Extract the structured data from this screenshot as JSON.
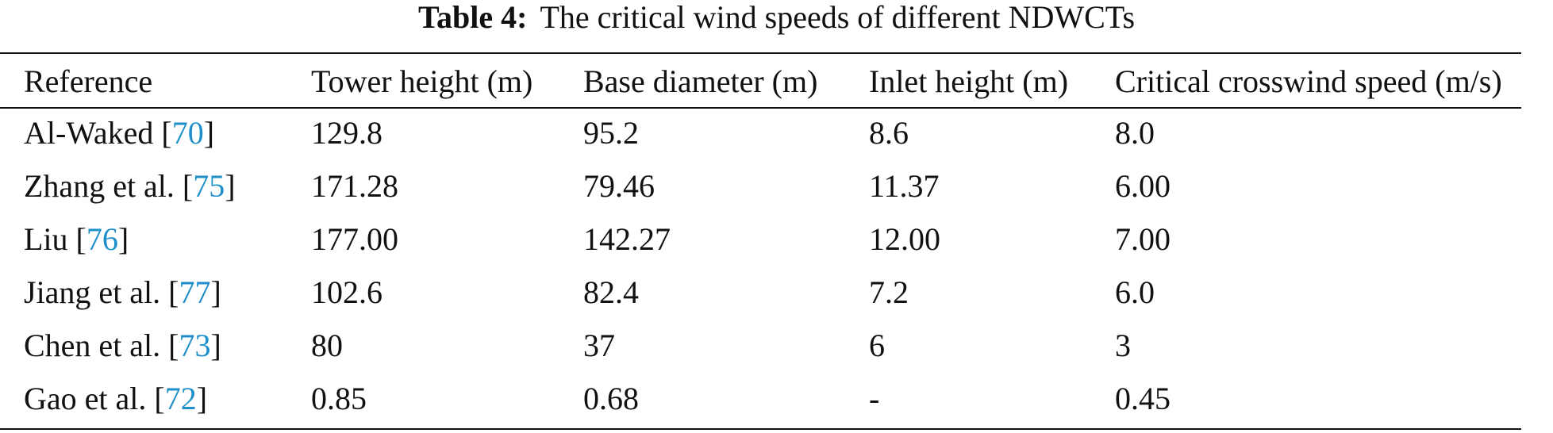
{
  "caption": {
    "label": "Table 4:",
    "text": "The critical wind speeds of different NDWCTs"
  },
  "columns": [
    "Reference",
    "Tower height (m)",
    "Base diameter (m)",
    "Inlet height (m)",
    "Critical crosswind speed (m/s)"
  ],
  "rows": [
    {
      "author": "Al-Waked",
      "ref": "70",
      "cells": [
        "129.8",
        "95.2",
        "8.6",
        "8.0"
      ]
    },
    {
      "author": "Zhang et al.",
      "ref": "75",
      "cells": [
        "171.28",
        "79.46",
        "11.37",
        "6.00"
      ]
    },
    {
      "author": "Liu",
      "ref": "76",
      "cells": [
        "177.00",
        "142.27",
        "12.00",
        "7.00"
      ]
    },
    {
      "author": "Jiang et al.",
      "ref": "77",
      "cells": [
        "102.6",
        "82.4",
        "7.2",
        "6.0"
      ]
    },
    {
      "author": "Chen et al.",
      "ref": "73",
      "cells": [
        "80",
        "37",
        "6",
        "3"
      ]
    },
    {
      "author": "Gao et al.",
      "ref": "72",
      "cells": [
        "0.85",
        "0.68",
        "-",
        "0.45"
      ]
    }
  ],
  "colors": {
    "citation_link": "#1f8fc9",
    "text": "#111111"
  }
}
